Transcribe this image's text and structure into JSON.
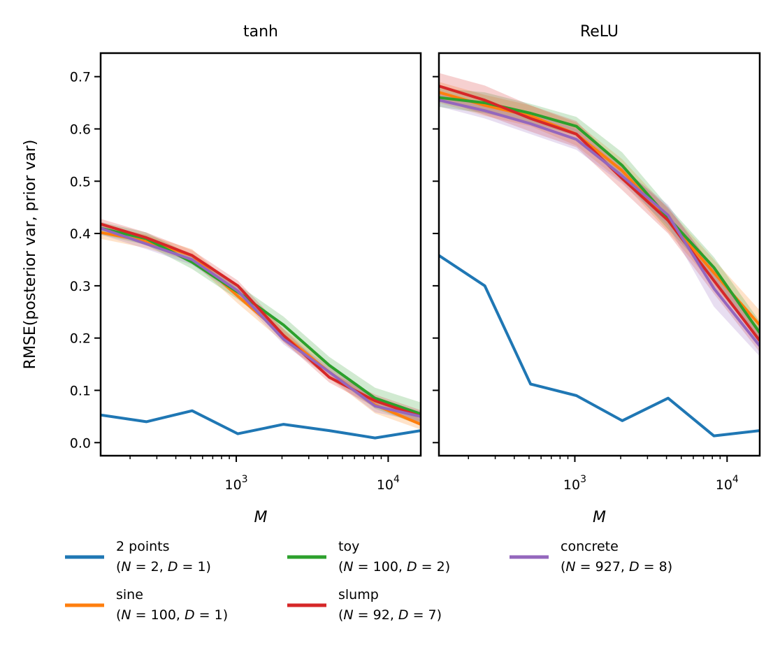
{
  "chart_data": [
    {
      "type": "line",
      "title": "tanh",
      "xlabel": "M",
      "ylabel": "RMSE(posterior var, prior var)",
      "xscale": "log",
      "xlim": [
        128,
        16384
      ],
      "ylim": [
        -0.025,
        0.745
      ],
      "x_ticks": [
        {
          "value": 1000,
          "base": "10",
          "exp": "3"
        },
        {
          "value": 10000,
          "base": "10",
          "exp": "4"
        }
      ],
      "y_ticks": [
        {
          "value": 0.0,
          "label": "0.0"
        },
        {
          "value": 0.1,
          "label": "0.1"
        },
        {
          "value": 0.2,
          "label": "0.2"
        },
        {
          "value": 0.3,
          "label": "0.3"
        },
        {
          "value": 0.4,
          "label": "0.4"
        },
        {
          "value": 0.5,
          "label": "0.5"
        },
        {
          "value": 0.6,
          "label": "0.6"
        },
        {
          "value": 0.7,
          "label": "0.7"
        }
      ],
      "x": [
        128,
        256,
        512,
        1024,
        2048,
        4096,
        8192,
        16384
      ],
      "series": [
        {
          "key": "two_points",
          "values": [
            0.053,
            0.04,
            0.061,
            0.017,
            0.035,
            0.023,
            0.009,
            0.023
          ],
          "band": [
            0,
            0,
            0,
            0,
            0,
            0,
            0,
            0
          ]
        },
        {
          "key": "sine",
          "values": [
            0.402,
            0.385,
            0.358,
            0.28,
            0.205,
            0.135,
            0.072,
            0.035
          ],
          "band": [
            0.012,
            0.013,
            0.012,
            0.014,
            0.013,
            0.012,
            0.016,
            0.01
          ]
        },
        {
          "key": "toy",
          "values": [
            0.41,
            0.39,
            0.345,
            0.288,
            0.225,
            0.148,
            0.085,
            0.055
          ],
          "band": [
            0.012,
            0.012,
            0.013,
            0.014,
            0.016,
            0.016,
            0.02,
            0.022
          ]
        },
        {
          "key": "slump",
          "values": [
            0.418,
            0.392,
            0.358,
            0.3,
            0.205,
            0.125,
            0.08,
            0.05
          ],
          "band": [
            0.01,
            0.01,
            0.01,
            0.01,
            0.012,
            0.01,
            0.012,
            0.012
          ]
        },
        {
          "key": "concrete",
          "values": [
            0.41,
            0.38,
            0.35,
            0.29,
            0.198,
            0.135,
            0.07,
            0.05
          ],
          "band": [
            0.012,
            0.01,
            0.01,
            0.01,
            0.01,
            0.01,
            0.012,
            0.01
          ]
        }
      ]
    },
    {
      "type": "line",
      "title": "ReLU",
      "xlabel": "M",
      "ylabel": "",
      "xscale": "log",
      "xlim": [
        128,
        16384
      ],
      "ylim": [
        -0.025,
        0.745
      ],
      "x_ticks": [
        {
          "value": 1000,
          "base": "10",
          "exp": "3"
        },
        {
          "value": 10000,
          "base": "10",
          "exp": "4"
        }
      ],
      "y_ticks": [
        {
          "value": 0.0,
          "label": ""
        },
        {
          "value": 0.1,
          "label": ""
        },
        {
          "value": 0.2,
          "label": ""
        },
        {
          "value": 0.3,
          "label": ""
        },
        {
          "value": 0.4,
          "label": ""
        },
        {
          "value": 0.5,
          "label": ""
        },
        {
          "value": 0.6,
          "label": ""
        },
        {
          "value": 0.7,
          "label": ""
        }
      ],
      "x": [
        128,
        256,
        512,
        1024,
        2048,
        4096,
        8192,
        16384
      ],
      "series": [
        {
          "key": "two_points",
          "values": [
            0.358,
            0.3,
            0.112,
            0.09,
            0.042,
            0.085,
            0.013,
            0.023
          ],
          "band": [
            0,
            0,
            0,
            0,
            0,
            0,
            0,
            0
          ]
        },
        {
          "key": "sine",
          "values": [
            0.67,
            0.645,
            0.625,
            0.59,
            0.52,
            0.425,
            0.325,
            0.225
          ],
          "band": [
            0.02,
            0.02,
            0.02,
            0.022,
            0.022,
            0.022,
            0.025,
            0.028
          ]
        },
        {
          "key": "toy",
          "values": [
            0.66,
            0.65,
            0.63,
            0.605,
            0.53,
            0.43,
            0.335,
            0.21
          ],
          "band": [
            0.018,
            0.02,
            0.018,
            0.018,
            0.025,
            0.022,
            0.02,
            0.022
          ]
        },
        {
          "key": "slump",
          "values": [
            0.682,
            0.655,
            0.62,
            0.59,
            0.505,
            0.425,
            0.31,
            0.195
          ],
          "band": [
            0.025,
            0.028,
            0.025,
            0.025,
            0.022,
            0.025,
            0.025,
            0.022
          ]
        },
        {
          "key": "concrete",
          "values": [
            0.655,
            0.635,
            0.61,
            0.58,
            0.51,
            0.435,
            0.295,
            0.185
          ],
          "band": [
            0.012,
            0.015,
            0.02,
            0.02,
            0.015,
            0.02,
            0.035,
            0.02
          ]
        }
      ]
    }
  ],
  "legend": {
    "placement": "bottom",
    "entries": [
      {
        "key": "two_points",
        "label": "2 points",
        "N": "2",
        "D": "1",
        "color": "#1f77b4"
      },
      {
        "key": "sine",
        "label": "sine",
        "N": "100",
        "D": "1",
        "color": "#ff7f0e"
      },
      {
        "key": "toy",
        "label": "toy",
        "N": "100",
        "D": "2",
        "color": "#2ca02c"
      },
      {
        "key": "slump",
        "label": "slump",
        "N": "92",
        "D": "7",
        "color": "#d62728"
      },
      {
        "key": "concrete",
        "label": "concrete",
        "N": "927",
        "D": "8",
        "color": "#9467bd"
      }
    ]
  }
}
